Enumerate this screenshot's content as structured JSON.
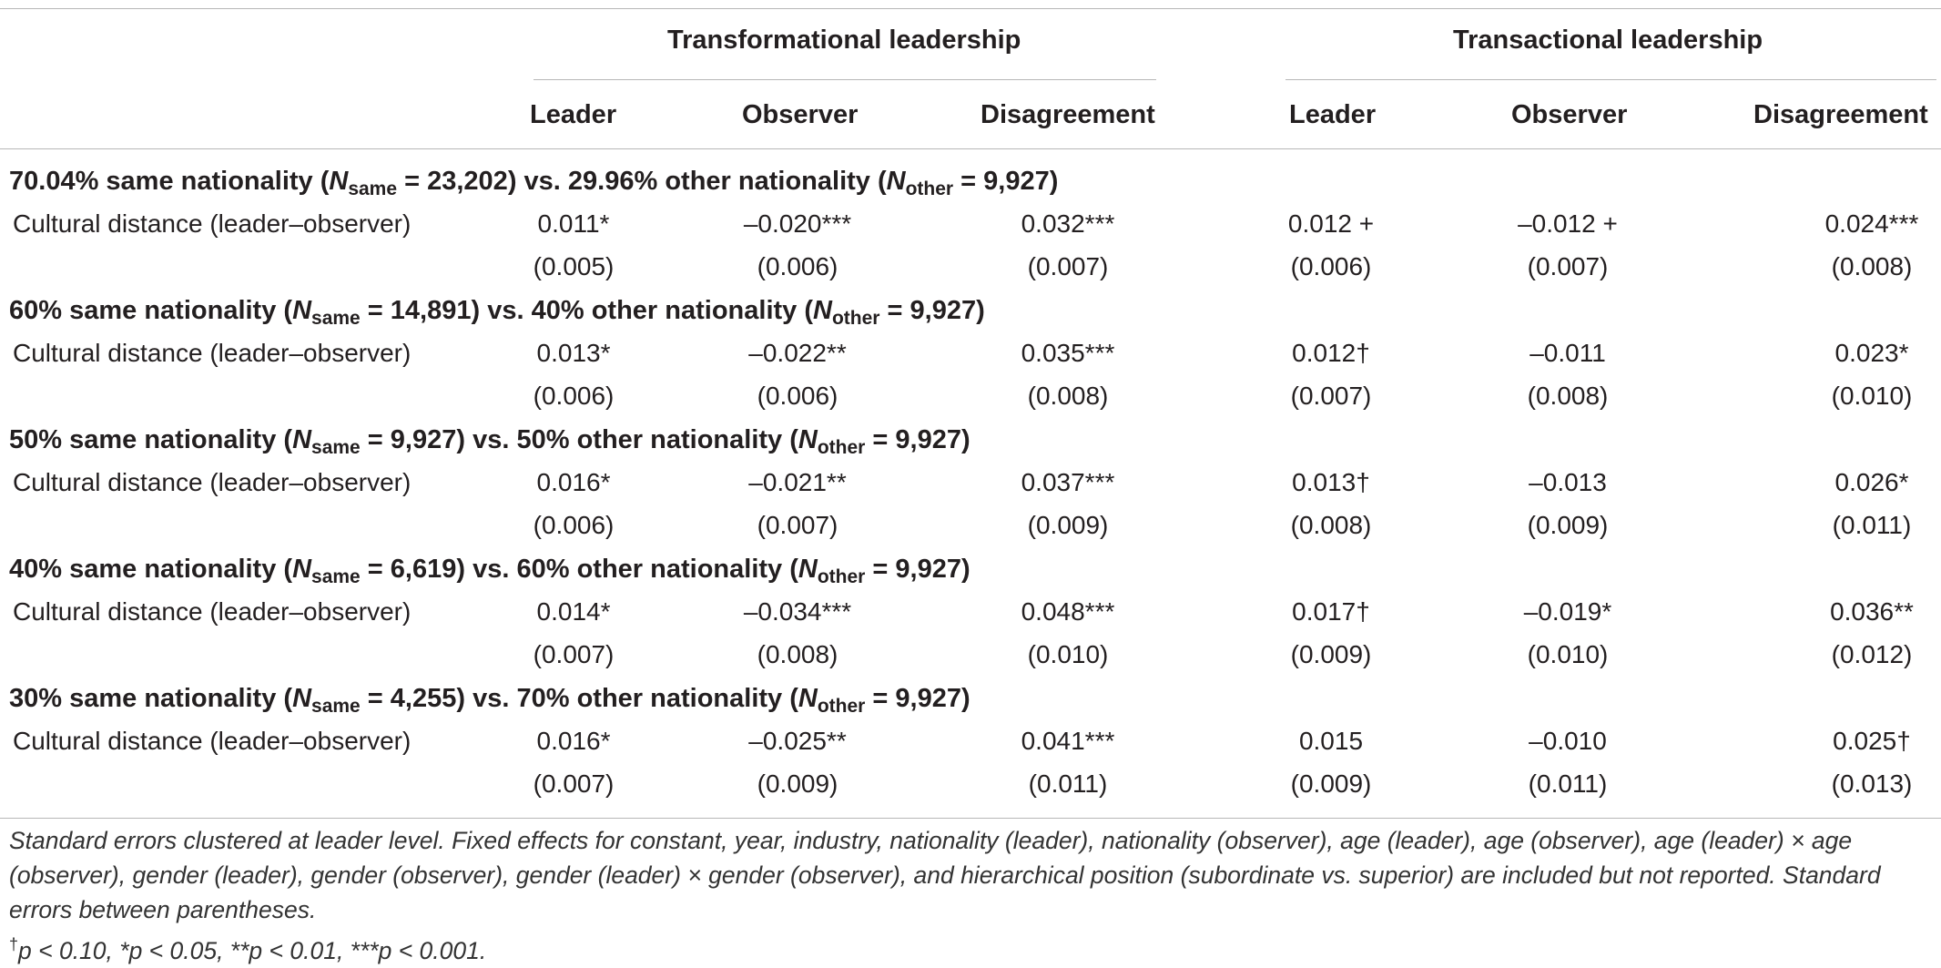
{
  "groups": [
    "Transformational leadership",
    "Transactional leadership"
  ],
  "columns": [
    "Leader",
    "Observer",
    "Disagreement",
    "Leader",
    "Observer",
    "Disagreement"
  ],
  "sections": [
    {
      "pct_same": "70.04% same nationality (",
      "n_same": "23,202",
      "pct_other": "29.96% other nationality (",
      "n_other": "9,927",
      "row_label": "Cultural distance (leader–observer)",
      "coefs": [
        "0.011*",
        "–0.020***",
        "0.032***",
        "0.012 +",
        "–0.012 +",
        "0.024***"
      ],
      "ses": [
        "(0.005)",
        "(0.006)",
        "(0.007)",
        "(0.006)",
        "(0.007)",
        "(0.008)"
      ]
    },
    {
      "pct_same": "60% same nationality (",
      "n_same": "14,891",
      "pct_other": "40% other nationality (",
      "n_other": "9,927",
      "row_label": "Cultural distance (leader–observer)",
      "coefs": [
        "0.013*",
        "–0.022**",
        "0.035***",
        "0.012†",
        "–0.011",
        "0.023*"
      ],
      "ses": [
        "(0.006)",
        "(0.006)",
        "(0.008)",
        "(0.007)",
        "(0.008)",
        "(0.010)"
      ]
    },
    {
      "pct_same": "50% same nationality (",
      "n_same": "9,927",
      "pct_other": "50% other nationality (",
      "n_other": "9,927",
      "row_label": "Cultural distance (leader–observer)",
      "coefs": [
        "0.016*",
        "–0.021**",
        "0.037***",
        "0.013†",
        "–0.013",
        "0.026*"
      ],
      "ses": [
        "(0.006)",
        "(0.007)",
        "(0.009)",
        "(0.008)",
        "(0.009)",
        "(0.011)"
      ]
    },
    {
      "pct_same": "40% same nationality (",
      "n_same": "6,619",
      "pct_other": "60% other nationality (",
      "n_other": "9,927",
      "row_label": "Cultural distance (leader–observer)",
      "coefs": [
        "0.014*",
        "–0.034***",
        "0.048***",
        "0.017†",
        "–0.019*",
        "0.036**"
      ],
      "ses": [
        "(0.007)",
        "(0.008)",
        "(0.010)",
        "(0.009)",
        "(0.010)",
        "(0.012)"
      ]
    },
    {
      "pct_same": "30% same nationality (",
      "n_same": "4,255",
      "pct_other": "70% other nationality (",
      "n_other": "9,927",
      "row_label": "Cultural distance (leader–observer)",
      "coefs": [
        "0.016*",
        "–0.025**",
        "0.041***",
        "0.015",
        "–0.010",
        "0.025†"
      ],
      "ses": [
        "(0.007)",
        "(0.009)",
        "(0.011)",
        "(0.009)",
        "(0.011)",
        "(0.013)"
      ]
    }
  ],
  "sym": {
    "N": "N",
    "same": "same",
    "other": "other",
    "eq": " = ",
    "close": ")",
    "vs": " vs. "
  },
  "footnote": {
    "line1": "Standard errors clustered at leader level. Fixed effects for constant, year, industry, nationality (leader), nationality (observer), age (leader), age (observer), age (leader) × age (observer), gender (leader), gender (observer), gender (leader) × gender (observer), and hierarchical position (subordinate vs. superior) are included but not reported. Standard errors between parentheses.",
    "dagger": "†",
    "line2": "p < 0.10, *p < 0.05, **p < 0.01, ***p < 0.001."
  }
}
